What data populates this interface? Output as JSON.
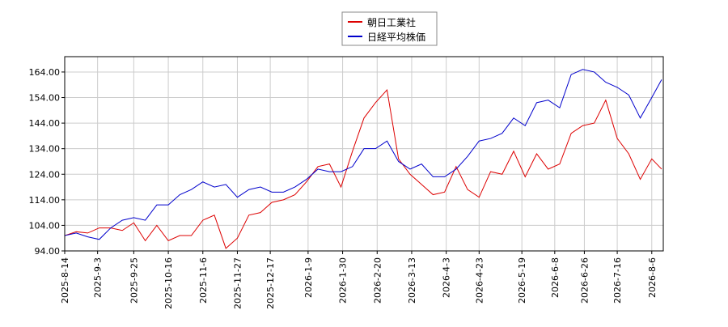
{
  "chart_data": {
    "type": "line",
    "x": [
      "2025-8-14",
      "2025-8-21",
      "2025-8-28",
      "2025-9-4",
      "2025-9-11",
      "2025-9-18",
      "2025-9-25",
      "2025-10-2",
      "2025-10-9",
      "2025-10-16",
      "2025-10-23",
      "2025-10-30",
      "2025-11-6",
      "2025-11-13",
      "2025-11-20",
      "2025-11-27",
      "2025-12-4",
      "2025-12-11",
      "2025-12-18",
      "2025-12-25",
      "2026-1-1",
      "2026-1-8",
      "2026-1-15",
      "2026-1-22",
      "2026-1-29",
      "2026-2-5",
      "2026-2-12",
      "2026-2-19",
      "2026-2-26",
      "2026-3-5",
      "2026-3-12",
      "2026-3-19",
      "2026-3-26",
      "2026-4-2",
      "2026-4-9",
      "2026-4-16",
      "2026-4-23",
      "2026-4-30",
      "2026-5-7",
      "2026-5-14",
      "2026-5-21",
      "2026-5-28",
      "2026-6-4",
      "2026-6-11",
      "2026-6-18",
      "2026-6-25",
      "2026-7-2",
      "2026-7-9",
      "2026-7-16",
      "2026-7-23",
      "2026-7-30",
      "2026-8-6",
      "2026-8-12"
    ],
    "series": [
      {
        "name": "朝日工業社",
        "color": "#dd0000",
        "values": [
          100,
          101.5,
          101,
          103,
          103,
          102,
          105,
          98,
          104,
          98,
          100,
          100,
          106,
          108,
          95,
          99,
          108,
          109,
          113,
          114,
          116,
          121,
          127,
          128,
          119,
          133,
          146,
          152,
          157,
          130,
          124,
          120,
          116,
          117,
          127,
          118,
          115,
          125,
          124,
          133,
          123,
          132,
          126,
          128,
          140,
          143,
          144,
          153,
          138,
          132,
          122,
          130,
          126
        ]
      },
      {
        "name": "日経平均株価",
        "color": "#0000cc",
        "values": [
          100,
          101,
          99.5,
          98.5,
          103,
          106,
          107,
          106,
          112,
          112,
          116,
          118,
          121,
          119,
          120,
          115,
          118,
          119,
          117,
          117,
          119,
          122,
          126,
          125,
          125,
          127,
          134,
          134,
          137,
          129,
          126,
          128,
          123,
          123,
          126,
          131,
          137,
          138,
          140,
          146,
          143,
          152,
          153,
          150,
          163,
          165,
          164,
          160,
          158,
          155,
          146,
          154,
          161
        ]
      }
    ],
    "xlim": [
      "2025-8-14",
      "2026-8-13"
    ],
    "xticks": [
      "2025-8-14",
      "2025-9-3",
      "2025-9-25",
      "2025-10-16",
      "2025-11-6",
      "2025-11-27",
      "2025-12-17",
      "2026-1-9",
      "2026-1-30",
      "2026-2-20",
      "2026-3-13",
      "2026-4-3",
      "2026-4-23",
      "2026-5-19",
      "2026-6-8",
      "2026-6-26",
      "2026-7-16",
      "2026-8-6"
    ],
    "ylim": [
      94,
      170
    ],
    "yticks": [
      {
        "value": 94,
        "label": "94.00"
      },
      {
        "value": 104,
        "label": "104.00"
      },
      {
        "value": 114,
        "label": "114.00"
      },
      {
        "value": 124,
        "label": "124.00"
      },
      {
        "value": 134,
        "label": "134.00"
      },
      {
        "value": 144,
        "label": "144.00"
      },
      {
        "value": 154,
        "label": "154.00"
      },
      {
        "value": 164,
        "label": "164.00"
      }
    ],
    "grid": true,
    "legend": "top"
  }
}
